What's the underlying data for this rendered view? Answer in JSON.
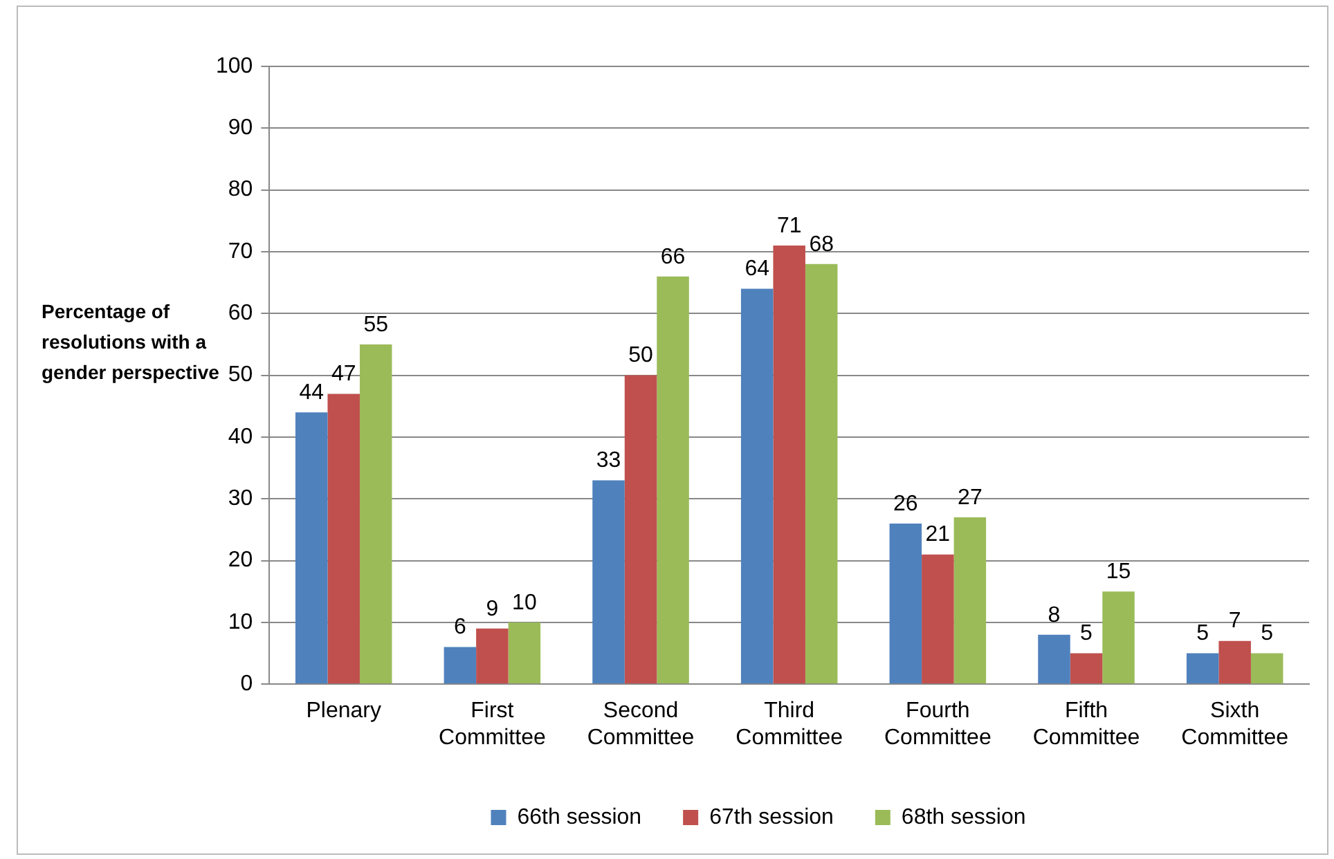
{
  "chart_data": {
    "type": "bar",
    "ylabel": "Percentage of resolutions with a gender perspective",
    "categories": [
      "Plenary",
      "First Committee",
      "Second Committee",
      "Third Committee",
      "Fourth Committee",
      "Fifth Committee",
      "Sixth Committee"
    ],
    "series": [
      {
        "name": "66th session",
        "color": "#4f81bd",
        "values": [
          44,
          6,
          33,
          64,
          26,
          8,
          5
        ]
      },
      {
        "name": "67th session",
        "color": "#c0504d",
        "values": [
          47,
          9,
          50,
          71,
          21,
          5,
          7
        ]
      },
      {
        "name": "68th session",
        "color": "#9bbb59",
        "values": [
          55,
          10,
          66,
          68,
          27,
          15,
          5
        ]
      }
    ],
    "ylim": [
      0,
      100
    ],
    "yticks": [
      0,
      10,
      20,
      30,
      40,
      50,
      60,
      70,
      80,
      90,
      100
    ],
    "grid": "y",
    "legend": "bottom",
    "data_labels": true
  }
}
